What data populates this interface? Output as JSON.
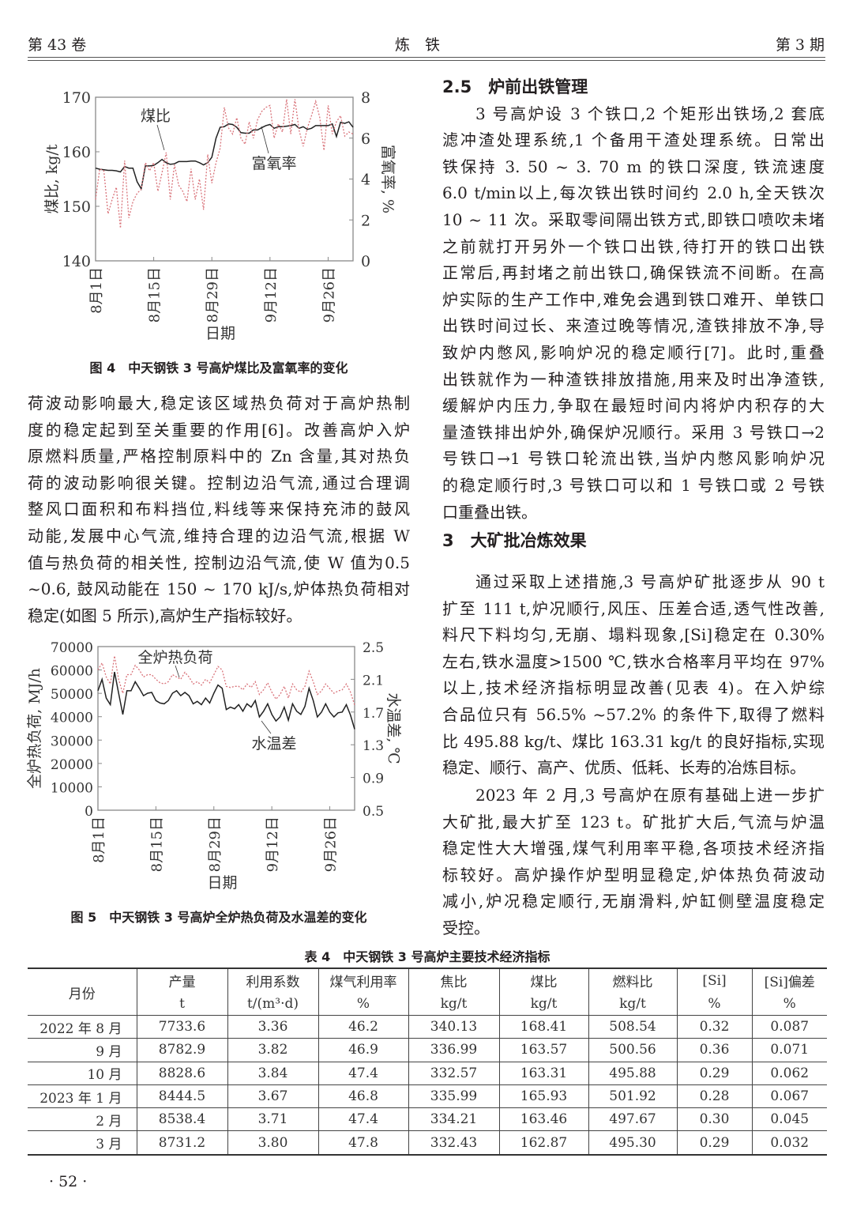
{
  "header": {
    "volume": "第 43 卷",
    "journal": "炼　铁",
    "issue": "第 3 期"
  },
  "left_column": [
    {
      "lines": [
        "荷波动影响最大,稳定该区域热负荷对于高炉热制",
        "度的稳定起到至关重要的作用[6]。改善高炉入炉",
        "原燃料质量,严格控制原料中的 Zn 含量,其对热负",
        "荷的波动影响很关键。控制边沿气流,通过合理调",
        "整风口面积和布料挡位,料线等来保持充沛的鼓风",
        "动能,发展中心气流,维持合理的边沿气流,根据 W",
        "值与热负荷的相关性, 控制边沿气流,使 W 值为0.5",
        "~0.6, 鼓风动能在 150 ~ 170 kJ/s,炉体热负荷相对",
        "稳定(如图 5 所示),高炉生产指标较好。"
      ]
    }
  ],
  "right_column": {
    "section_2_5": "2.5　炉前出铁管理",
    "p1": {
      "lines": [
        "3 号高炉设 3 个铁口,2 个矩形出铁场,2 套底",
        "滤冲渣处理系统,1 个备用干渣处理系统。日常出",
        "铁保持 3. 50 ~ 3. 70 m 的铁口深度, 铁流速度",
        "6.0 t/min以上,每次铁出铁时间约 2.0 h,全天铁次",
        "10 ~ 11 次。采取零间隔出铁方式,即铁口喷吹未堵",
        "之前就打开另外一个铁口出铁,待打开的铁口出铁",
        "正常后,再封堵之前出铁口,确保铁流不间断。在高",
        "炉实际的生产工作中,难免会遇到铁口难开、单铁口",
        "出铁时间过长、来渣过晚等情况,渣铁排放不净,导",
        "致炉内憋风,影响炉况的稳定顺行[7]。此时,重叠",
        "出铁就作为一种渣铁排放措施,用来及时出净渣铁,",
        "缓解炉内压力,争取在最短时间内将炉内积存的大",
        "量渣铁排出炉外,确保炉况顺行。采用 3 号铁口→2",
        "号铁口→1 号铁口轮流出铁,当炉内憋风影响炉况",
        "的稳定顺行时,3 号铁口可以和 1 号铁口或 2 号铁",
        "口重叠出铁。"
      ]
    },
    "section_3": "3　大矿批冶炼效果",
    "p2": {
      "lines": [
        "通过采取上述措施,3 号高炉矿批逐步从 90 t",
        "扩至 111 t,炉况顺行,风压、压差合适,透气性改善,",
        "料尺下料均匀,无崩、塌料现象,[Si]稳定在 0.30%",
        "左右,铁水温度>1500 ℃,铁水合格率月平均在 97%",
        "以上,技术经济指标明显改善(见表 4)。在入炉综",
        "合品位只有 56.5% ~57.2% 的条件下,取得了燃料",
        "比 495.88 kg/t、煤比 163.31 kg/t 的良好指标,实现",
        "稳定、顺行、高产、优质、低耗、长寿的冶炼目标。"
      ]
    },
    "p3": {
      "lines": [
        "2023 年 2 月,3 号高炉在原有基础上进一步扩",
        "大矿批,最大扩至 123 t。矿批扩大后,气流与炉温",
        "稳定性大大增强,煤气利用率平稳,各项技术经济指",
        "标较好。高炉操作炉型明显稳定,炉体热负荷波动",
        "减小,炉况稳定顺行,无崩滑料,炉缸侧壁温度稳定",
        "受控。"
      ]
    }
  },
  "figure4": {
    "caption": "图 4　中天钢铁 3 号高炉煤比及富氧率的变化"
  },
  "figure5": {
    "caption": "图 5　中天钢铁 3 号高炉全炉热负荷及水温差的变化"
  },
  "chart_data": [
    {
      "type": "line",
      "title": "",
      "xlabel": "日期",
      "ylabel": "煤比, kg/t",
      "y2label": "富氧率, %",
      "x_tick_labels": [
        "8月1日",
        "8月15日",
        "8月29日",
        "9月12日",
        "9月26日"
      ],
      "x_tick_days": [
        0,
        14,
        28,
        42,
        56
      ],
      "ylim": [
        140,
        170
      ],
      "yticks": [
        140,
        150,
        160,
        170
      ],
      "y2lim": [
        0,
        8
      ],
      "y2ticks": [
        0,
        2,
        4,
        6,
        8
      ],
      "xlim_days": [
        0,
        62
      ],
      "grid": false,
      "colors": {
        "coal": "#222222",
        "oxygen": "#d9737a"
      },
      "series": [
        {
          "name": "煤比",
          "axis": "left",
          "style": "solid",
          "values": [
            157,
            156.8,
            156.7,
            156.6,
            156.6,
            156.5,
            156.3,
            157.3,
            157,
            157,
            154.5,
            153.2,
            157.4,
            157.4,
            157.5,
            158,
            158.6,
            158,
            157.7,
            157.8,
            158.2,
            158.2,
            158.2,
            158.3,
            158.3,
            158,
            157.6,
            158,
            159,
            162.5,
            164.5,
            164.6,
            165.1,
            165,
            164.5,
            163.5,
            163.4,
            163.4,
            164,
            164,
            164.4,
            164.8,
            165,
            164.3,
            164.6,
            164.6,
            164.7,
            164.8,
            165,
            164.3,
            164.6,
            164.1,
            164.3,
            164.8,
            164.8,
            164.8,
            164.8,
            165.1,
            162.8,
            165.4,
            165.2,
            165.5,
            164.5
          ]
        },
        {
          "name": "富氧率",
          "axis": "right",
          "style": "dotted",
          "values": [
            3,
            4.5,
            4.4,
            2.3,
            3,
            3.6,
            1.6,
            4.9,
            2.1,
            2.9,
            3.3,
            3.5,
            4.8,
            4.4,
            4.8,
            3.4,
            4.3,
            5.3,
            3,
            4.7,
            3.7,
            3.4,
            2.9,
            4.5,
            3,
            4,
            2.5,
            5.2,
            3.8,
            4.8,
            5.5,
            7.5,
            6.5,
            6.2,
            7,
            6,
            5.7,
            6.8,
            6,
            6.9,
            7.3,
            7.5,
            7.6,
            6,
            6.7,
            6.3,
            7.9,
            6.2,
            7.9,
            6.4,
            5.6,
            6.5,
            7.1,
            7.8,
            7,
            5.4,
            7.6,
            6.2,
            6.8,
            7.1,
            6.1,
            6.3,
            6.2
          ]
        }
      ]
    },
    {
      "type": "line",
      "title": "",
      "xlabel": "日期",
      "ylabel": "全炉热负荷, MJ/h",
      "y2label": "水温差, ℃",
      "x_tick_labels": [
        "8月1日",
        "8月15日",
        "8月29日",
        "9月12日",
        "9月26日"
      ],
      "x_tick_days": [
        0,
        14,
        28,
        42,
        56
      ],
      "ylim": [
        0,
        70000
      ],
      "yticks": [
        0,
        10000,
        20000,
        30000,
        40000,
        50000,
        60000,
        70000
      ],
      "y2lim": [
        0.5,
        2.5
      ],
      "y2ticks": [
        0.5,
        0.9,
        1.3,
        1.7,
        2.1,
        2.5
      ],
      "xlim_days": [
        0,
        62
      ],
      "grid": false,
      "colors": {
        "heat": "#d9737a",
        "water": "#222222"
      },
      "series": [
        {
          "name": "全炉热负荷",
          "axis": "left",
          "style": "dotted",
          "values": [
            60000,
            63000,
            57000,
            54000,
            66000,
            56000,
            50000,
            58000,
            58000,
            62000,
            60000,
            57000,
            58000,
            58000,
            56000,
            54500,
            54000,
            55000,
            58000,
            57000,
            56000,
            59000,
            57000,
            54000,
            55000,
            53500,
            56000,
            54500,
            58000,
            61500,
            60000,
            53000,
            52500,
            53000,
            53000,
            51500,
            54000,
            52500,
            55000,
            49500,
            51500,
            54500,
            50500,
            47500,
            49500,
            53000,
            48000,
            54000,
            51500,
            50500,
            53000,
            59500,
            55000,
            49500,
            51000,
            54000,
            52000,
            50000,
            51000,
            51500,
            54000,
            50500,
            45000
          ]
        },
        {
          "name": "水温差",
          "axis": "right",
          "style": "solid",
          "values": [
            1.96,
            2.1,
            1.87,
            1.79,
            2.19,
            1.93,
            1.67,
            1.96,
            1.96,
            2.07,
            1.99,
            1.9,
            1.93,
            1.94,
            1.84,
            1.81,
            1.8,
            1.84,
            1.93,
            1.96,
            1.9,
            1.94,
            1.9,
            1.8,
            1.83,
            1.79,
            1.87,
            1.81,
            1.93,
            2.03,
            1.99,
            1.73,
            1.76,
            1.74,
            1.79,
            1.71,
            1.8,
            1.76,
            1.84,
            1.64,
            1.71,
            1.8,
            1.67,
            1.59,
            1.64,
            1.76,
            1.6,
            1.8,
            1.71,
            1.67,
            1.77,
            1.99,
            1.84,
            1.64,
            1.7,
            1.8,
            1.7,
            1.64,
            1.69,
            1.7,
            1.79,
            1.66,
            1.49
          ]
        }
      ]
    }
  ],
  "table4": {
    "caption": "表 4　中天钢铁 3 号高炉主要技术经济指标",
    "month_header": "月份",
    "columns": [
      {
        "name": "产量",
        "unit": "t"
      },
      {
        "name": "利用系数",
        "unit": "t/(m³·d)"
      },
      {
        "name": "煤气利用率",
        "unit": "%"
      },
      {
        "name": "焦比",
        "unit": "kg/t"
      },
      {
        "name": "煤比",
        "unit": "kg/t"
      },
      {
        "name": "燃料比",
        "unit": "kg/t"
      },
      {
        "name": "[Si]",
        "unit": "%"
      },
      {
        "name": "[Si]偏差",
        "unit": "%"
      }
    ],
    "rows": [
      [
        "2022 年 8 月",
        "7733.6",
        "3.36",
        "46.2",
        "340.13",
        "168.41",
        "508.54",
        "0.32",
        "0.087"
      ],
      [
        "9 月",
        "8782.9",
        "3.82",
        "46.9",
        "336.99",
        "163.57",
        "500.56",
        "0.36",
        "0.071"
      ],
      [
        "10 月",
        "8828.6",
        "3.84",
        "47.4",
        "332.57",
        "163.31",
        "495.88",
        "0.29",
        "0.062"
      ],
      [
        "2023 年 1 月",
        "8444.5",
        "3.67",
        "46.8",
        "335.99",
        "165.93",
        "501.92",
        "0.28",
        "0.067"
      ],
      [
        "2 月",
        "8538.4",
        "3.71",
        "47.4",
        "334.21",
        "163.46",
        "497.67",
        "0.30",
        "0.045"
      ],
      [
        "3 月",
        "8731.2",
        "3.80",
        "47.8",
        "332.43",
        "162.87",
        "495.30",
        "0.29",
        "0.032"
      ]
    ]
  },
  "footer": {
    "page": "· 52 ·"
  }
}
